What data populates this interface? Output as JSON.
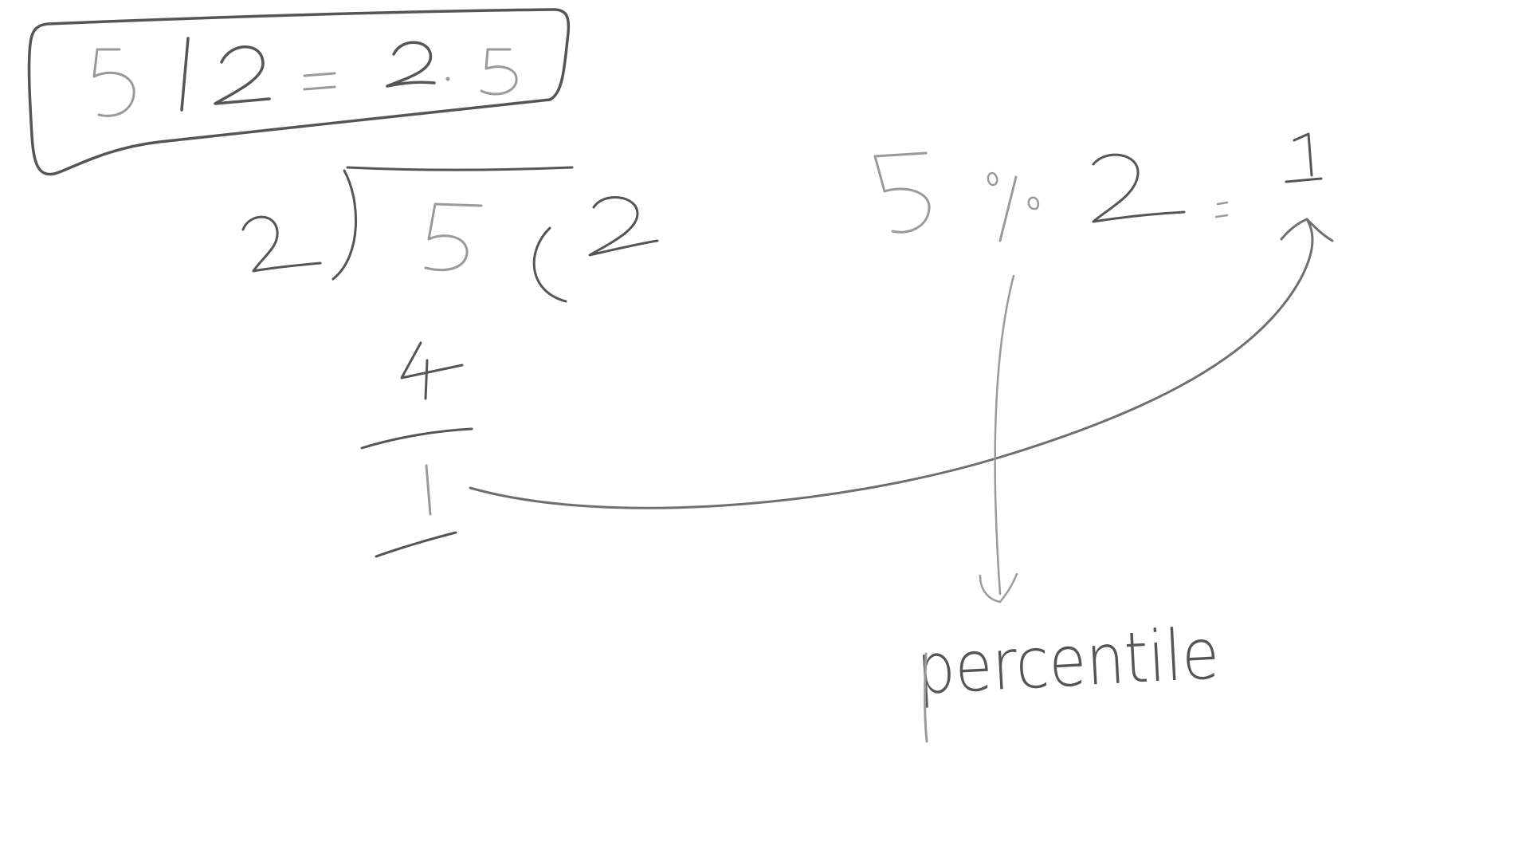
{
  "ink": {
    "dark": "#555555",
    "medium": "#6f6f6f",
    "light": "#9a9a9a",
    "background": "#ffffff"
  },
  "boxed_equation": {
    "dividend": "5",
    "operator": "/",
    "divisor": "2",
    "equals": "=",
    "result": "2.5"
  },
  "long_division": {
    "divisor": "2",
    "dividend": "5",
    "quotient": "2",
    "product": "4",
    "remainder": "1"
  },
  "modulo_equation": {
    "dividend": "5",
    "operator": "%",
    "divisor": "2",
    "equals": "=",
    "result": "1"
  },
  "annotation": {
    "label": "percentile"
  }
}
